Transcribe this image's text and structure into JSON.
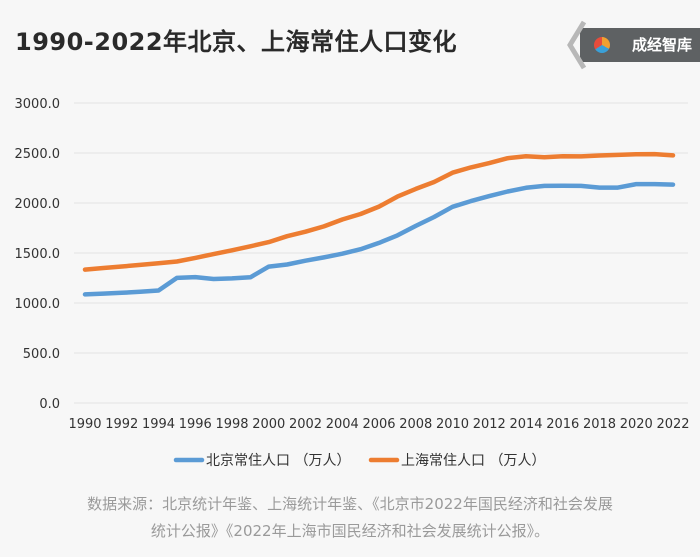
{
  "header": {
    "title": "1990-2022年北京、上海常住人口变化",
    "logo_text": "成经智库"
  },
  "footer": {
    "source_line1": "数据来源：北京统计年鉴、上海统计年鉴、《北京市2022年国民经济和社会发展",
    "source_line2": "统计公报》《2022年上海市国民经济和社会发展统计公报》。"
  },
  "colors": {
    "beijing": "#5b9bd5",
    "shanghai": "#ed7d31",
    "grid": "#e3e3e3"
  },
  "chart_data": {
    "type": "line",
    "title": "1990-2022年北京、上海常住人口变化",
    "xlabel": "",
    "ylabel": "",
    "ylim": [
      0,
      3000
    ],
    "yticks": [
      "0.0",
      "500.0",
      "1000.0",
      "1500.0",
      "2000.0",
      "2500.0",
      "3000.0"
    ],
    "xtick_labels": [
      "1990",
      "1992",
      "1994",
      "1996",
      "1998",
      "2000",
      "2002",
      "2004",
      "2006",
      "2008",
      "2010",
      "2012",
      "2014",
      "2016",
      "2018",
      "2020",
      "2022"
    ],
    "x": [
      1990,
      1991,
      1992,
      1993,
      1994,
      1995,
      1996,
      1997,
      1998,
      1999,
      2000,
      2001,
      2002,
      2003,
      2004,
      2005,
      2006,
      2007,
      2008,
      2009,
      2010,
      2011,
      2012,
      2013,
      2014,
      2015,
      2016,
      2017,
      2018,
      2019,
      2020,
      2021,
      2022
    ],
    "grid": true,
    "legend_position": "bottom",
    "series": [
      {
        "name": "北京常住人口 （万人）",
        "values": [
          1086,
          1094,
          1102,
          1112,
          1125,
          1251,
          1259,
          1240,
          1246,
          1257,
          1364,
          1385,
          1423,
          1456,
          1493,
          1538,
          1601,
          1676,
          1771,
          1860,
          1962,
          2019,
          2069,
          2115,
          2152,
          2171,
          2173,
          2171,
          2154,
          2154,
          2189,
          2189,
          2184
        ]
      },
      {
        "name": "上海常住人口 （万人）",
        "values": [
          1334,
          1350,
          1365,
          1381,
          1398,
          1415,
          1451,
          1489,
          1527,
          1567,
          1609,
          1668,
          1713,
          1766,
          1835,
          1890,
          1964,
          2064,
          2141,
          2210,
          2303,
          2356,
          2399,
          2448,
          2467,
          2458,
          2467,
          2466,
          2475,
          2481,
          2488,
          2489,
          2476
        ]
      }
    ]
  }
}
